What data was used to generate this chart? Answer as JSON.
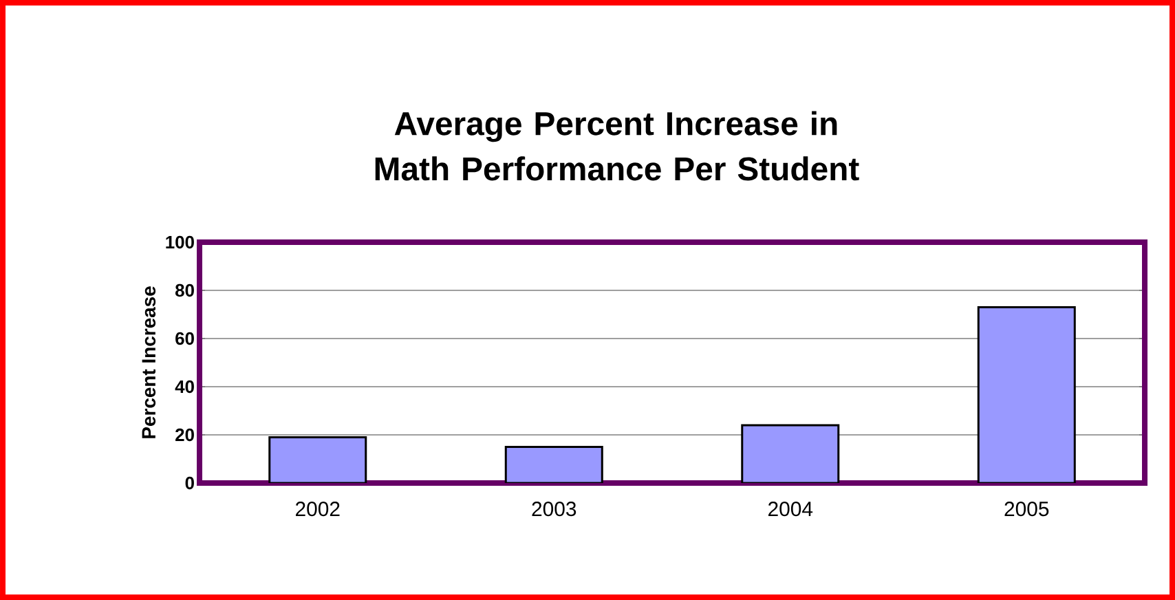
{
  "chart_data": {
    "type": "bar",
    "title": "Average Percent Increase in Math Performance Per Student",
    "ylabel": "Percent Increase",
    "categories": [
      "2002",
      "2003",
      "2004",
      "2005"
    ],
    "values": [
      19,
      15,
      24,
      73
    ],
    "color": "#9999ff",
    "ylim": [
      0,
      100
    ],
    "yticks": [
      0,
      20,
      40,
      60,
      80,
      100
    ],
    "grid": "y"
  }
}
